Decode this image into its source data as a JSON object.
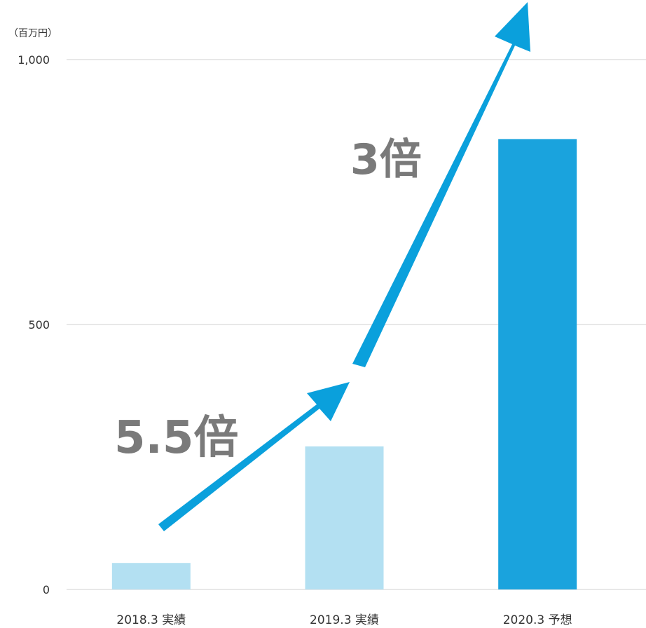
{
  "chart_data": {
    "type": "bar",
    "unit_label": "（百万円）",
    "categories": [
      "2018.3 実績",
      "2019.3 実績",
      "2020.3 予想"
    ],
    "values": [
      50,
      270,
      850
    ],
    "bar_colors": [
      "#b3e0f2",
      "#b3e0f2",
      "#1aa3dd"
    ],
    "ylim": [
      0,
      1000
    ],
    "yticks": [
      0,
      500,
      1000
    ],
    "ytick_labels": [
      "0",
      "500",
      "1,000"
    ],
    "grid": true,
    "legend": "none",
    "annotations": [
      {
        "text": "5.5倍"
      },
      {
        "text": "3倍"
      }
    ],
    "arrow_color": "#0aa0dc",
    "annotation_color": "#7a7a7a"
  }
}
